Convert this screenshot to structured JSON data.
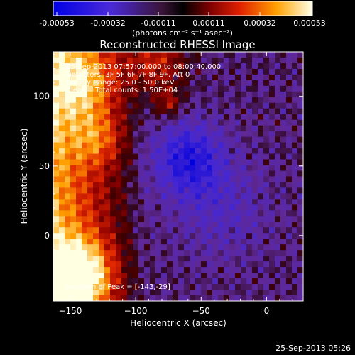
{
  "chart_data": {
    "type": "heatmap",
    "title": "Reconstructed RHESSI Image",
    "xlabel": "Heliocentric X (arcsec)",
    "ylabel": "Heliocentric Y (arcsec)",
    "xlim": [
      -163,
      28
    ],
    "ylim": [
      -47,
      132
    ],
    "xticks": [
      -150,
      -100,
      -50,
      0
    ],
    "yticks": [
      0,
      50,
      100
    ],
    "colorbar": {
      "ticks": [
        "-0.00053",
        "-0.00032",
        "-0.00011",
        "0.00011",
        "0.00032",
        "0.00053"
      ],
      "min": -0.00053,
      "max": 0.00053,
      "unit_label": "(photons cm⁻² s⁻¹ asec⁻²)"
    },
    "info_lines": [
      "25-Sep-2013 07:57:00.000 to 08:00:40.000",
      "Detectors: 3F 5F 6F 7F 8F 9F, Att 0",
      "Energy Range: 25.0 - 50.0 keV",
      "Clean    Total counts: 1.50E+04"
    ],
    "peak_text": "Location of Peak = [-143,-29]",
    "peak_location": [
      -143,
      -29
    ],
    "timestamp": "25-Sep-2013 05:26",
    "grid": false,
    "colors": {
      "background": "#000000",
      "text": "#ffffff"
    }
  }
}
